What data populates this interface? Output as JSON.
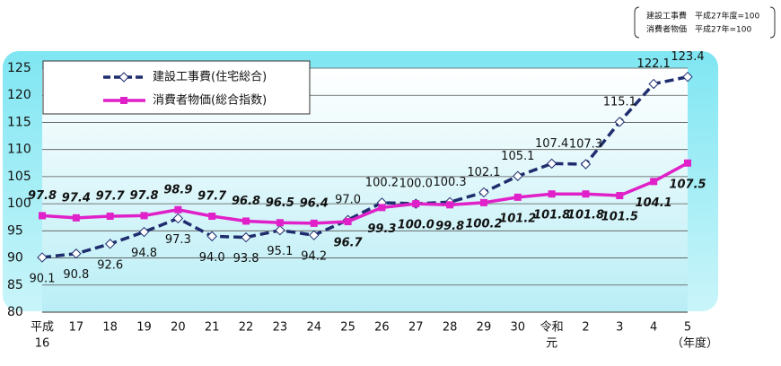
{
  "chart_data": {
    "type": "line",
    "note": [
      "建設工事費　平成27年度=100",
      "消費者物価　平成27年=100"
    ],
    "x_unit": "（年度）",
    "categories": [
      [
        "平成",
        "16"
      ],
      [
        "17"
      ],
      [
        "18"
      ],
      [
        "19"
      ],
      [
        "20"
      ],
      [
        "21"
      ],
      [
        "22"
      ],
      [
        "23"
      ],
      [
        "24"
      ],
      [
        "25"
      ],
      [
        "26"
      ],
      [
        "27"
      ],
      [
        "28"
      ],
      [
        "29"
      ],
      [
        "30"
      ],
      [
        "令和",
        "元"
      ],
      [
        "2"
      ],
      [
        "3"
      ],
      [
        "4"
      ],
      [
        "5"
      ]
    ],
    "series": [
      {
        "name": "建設工事費(住宅総合)",
        "color": "#1f2d6e",
        "dashed": true,
        "marker": "diamond",
        "values": [
          90.1,
          90.8,
          92.6,
          94.8,
          97.3,
          94.0,
          93.8,
          95.1,
          94.2,
          97.0,
          100.2,
          100.0,
          100.3,
          102.1,
          105.1,
          107.4,
          107.3,
          115.1,
          122.1,
          123.4
        ],
        "value_labels": [
          "90.1",
          "90.8",
          "92.6",
          "94.8",
          "97.3",
          "94.0",
          "93.8",
          "95.1",
          "94.2",
          "97.0",
          "100.2",
          "100.0",
          "100.3",
          "102.1",
          "105.1",
          "107.4",
          "107.3",
          "115.1",
          "122.1",
          "123.4"
        ]
      },
      {
        "name": "消費者物価(総合指数)",
        "color": "#e020c8",
        "dashed": false,
        "marker": "square",
        "values": [
          97.8,
          97.4,
          97.7,
          97.8,
          98.9,
          97.7,
          96.8,
          96.5,
          96.4,
          96.7,
          99.3,
          100.0,
          99.8,
          100.2,
          101.2,
          101.8,
          101.8,
          101.5,
          104.1,
          107.5
        ],
        "value_labels": [
          "97.8",
          "97.4",
          "97.7",
          "97.8",
          "98.9",
          "97.7",
          "96.8",
          "96.5",
          "96.4",
          "96.7",
          "99.3",
          "100.0",
          "99.8",
          "100.2",
          "101.2",
          "101.8",
          "101.8",
          "101.5",
          "104.1",
          "107.5"
        ]
      }
    ],
    "ylim": [
      80,
      125
    ],
    "yticks": [
      80,
      85,
      90,
      95,
      100,
      105,
      110,
      115,
      120,
      125
    ],
    "grid": true
  }
}
